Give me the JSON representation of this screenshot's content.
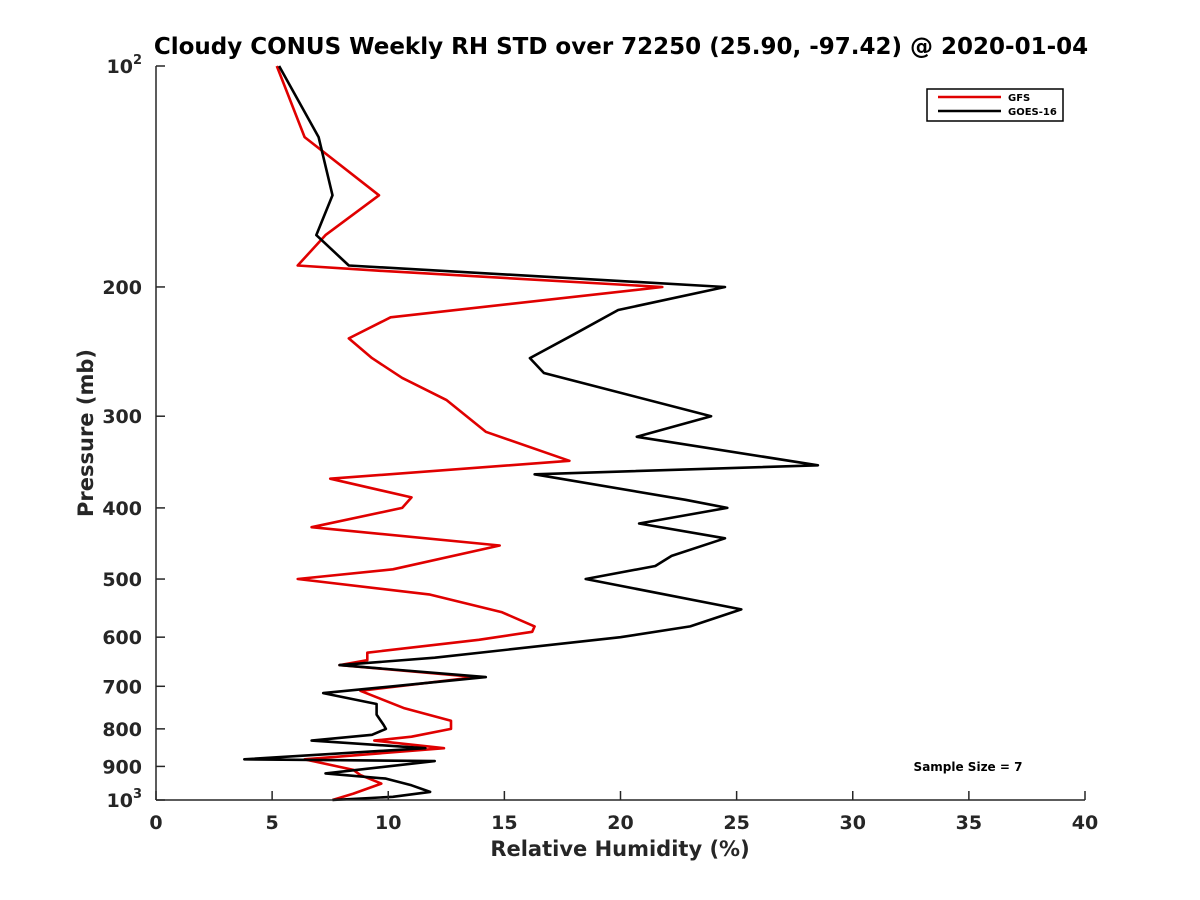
{
  "chart_data": {
    "type": "line",
    "title": "Cloudy CONUS Weekly RH STD over 72250 (25.90, -97.42) @ 2020-01-04",
    "xlabel": "Relative Humidity (%)",
    "ylabel": "Pressure (mb)",
    "xlim": [
      0,
      40
    ],
    "ylim": [
      100,
      1000
    ],
    "y_scale": "log",
    "y_inverted": true,
    "grid": false,
    "legend_position": "top-right",
    "x_ticks": [
      "0",
      "5",
      "10",
      "15",
      "20",
      "25",
      "30",
      "35",
      "40"
    ],
    "y_ticks": [
      {
        "value": 100,
        "base": "10",
        "exp": "2"
      },
      {
        "value": 200,
        "label": "200"
      },
      {
        "value": 300,
        "label": "300"
      },
      {
        "value": 400,
        "label": "400"
      },
      {
        "value": 500,
        "label": "500"
      },
      {
        "value": 600,
        "label": "600"
      },
      {
        "value": 700,
        "label": "700"
      },
      {
        "value": 800,
        "label": "800"
      },
      {
        "value": 900,
        "label": "900"
      },
      {
        "value": 1000,
        "base": "10",
        "exp": "3"
      }
    ],
    "series": [
      {
        "name": "GFS",
        "color": "#e00000",
        "points": [
          [
            5.2,
            100
          ],
          [
            6.4,
            125
          ],
          [
            9.6,
            150
          ],
          [
            7.3,
            170
          ],
          [
            6.1,
            187
          ],
          [
            9.5,
            190
          ],
          [
            21.8,
            200
          ],
          [
            10.1,
            220
          ],
          [
            8.3,
            235
          ],
          [
            9.3,
            250
          ],
          [
            10.6,
            266
          ],
          [
            12.5,
            285
          ],
          [
            14.2,
            315
          ],
          [
            17.8,
            345
          ],
          [
            7.5,
            365
          ],
          [
            11.0,
            387
          ],
          [
            10.6,
            400
          ],
          [
            6.7,
            425
          ],
          [
            14.8,
            450
          ],
          [
            10.2,
            485
          ],
          [
            6.1,
            500
          ],
          [
            11.8,
            525
          ],
          [
            14.9,
            555
          ],
          [
            16.3,
            580
          ],
          [
            16.2,
            590
          ],
          [
            13.9,
            605
          ],
          [
            9.1,
            630
          ],
          [
            9.1,
            645
          ],
          [
            7.9,
            655
          ],
          [
            13.8,
            680
          ],
          [
            8.8,
            710
          ],
          [
            10.7,
            750
          ],
          [
            12.7,
            780
          ],
          [
            12.7,
            800
          ],
          [
            11.0,
            820
          ],
          [
            9.4,
            830
          ],
          [
            12.4,
            850
          ],
          [
            6.4,
            880
          ],
          [
            8.5,
            910
          ],
          [
            8.8,
            925
          ],
          [
            9.7,
            950
          ],
          [
            8.5,
            980
          ],
          [
            7.6,
            1000
          ]
        ]
      },
      {
        "name": "GOES-16",
        "color": "#000000",
        "points": [
          [
            5.3,
            100
          ],
          [
            7.0,
            125
          ],
          [
            7.6,
            150
          ],
          [
            6.9,
            170
          ],
          [
            8.3,
            187
          ],
          [
            24.5,
            200
          ],
          [
            19.9,
            215
          ],
          [
            18.0,
            232
          ],
          [
            16.1,
            250
          ],
          [
            16.7,
            262
          ],
          [
            23.9,
            300
          ],
          [
            20.7,
            320
          ],
          [
            28.5,
            350
          ],
          [
            16.3,
            360
          ],
          [
            22.8,
            390
          ],
          [
            24.6,
            400
          ],
          [
            20.8,
            420
          ],
          [
            24.5,
            440
          ],
          [
            22.2,
            465
          ],
          [
            21.5,
            480
          ],
          [
            18.5,
            500
          ],
          [
            25.2,
            550
          ],
          [
            23.0,
            580
          ],
          [
            20.0,
            600
          ],
          [
            12.0,
            640
          ],
          [
            7.9,
            655
          ],
          [
            14.2,
            680
          ],
          [
            10.2,
            700
          ],
          [
            7.2,
            715
          ],
          [
            9.5,
            740
          ],
          [
            9.5,
            765
          ],
          [
            9.8,
            790
          ],
          [
            9.9,
            800
          ],
          [
            9.3,
            815
          ],
          [
            6.7,
            830
          ],
          [
            11.6,
            850
          ],
          [
            3.8,
            880
          ],
          [
            12.0,
            885
          ],
          [
            7.3,
            920
          ],
          [
            9.9,
            935
          ],
          [
            11.0,
            955
          ],
          [
            11.8,
            975
          ],
          [
            10.2,
            990
          ],
          [
            7.6,
            1000
          ]
        ]
      }
    ],
    "annotation": "Sample Size = 7"
  }
}
